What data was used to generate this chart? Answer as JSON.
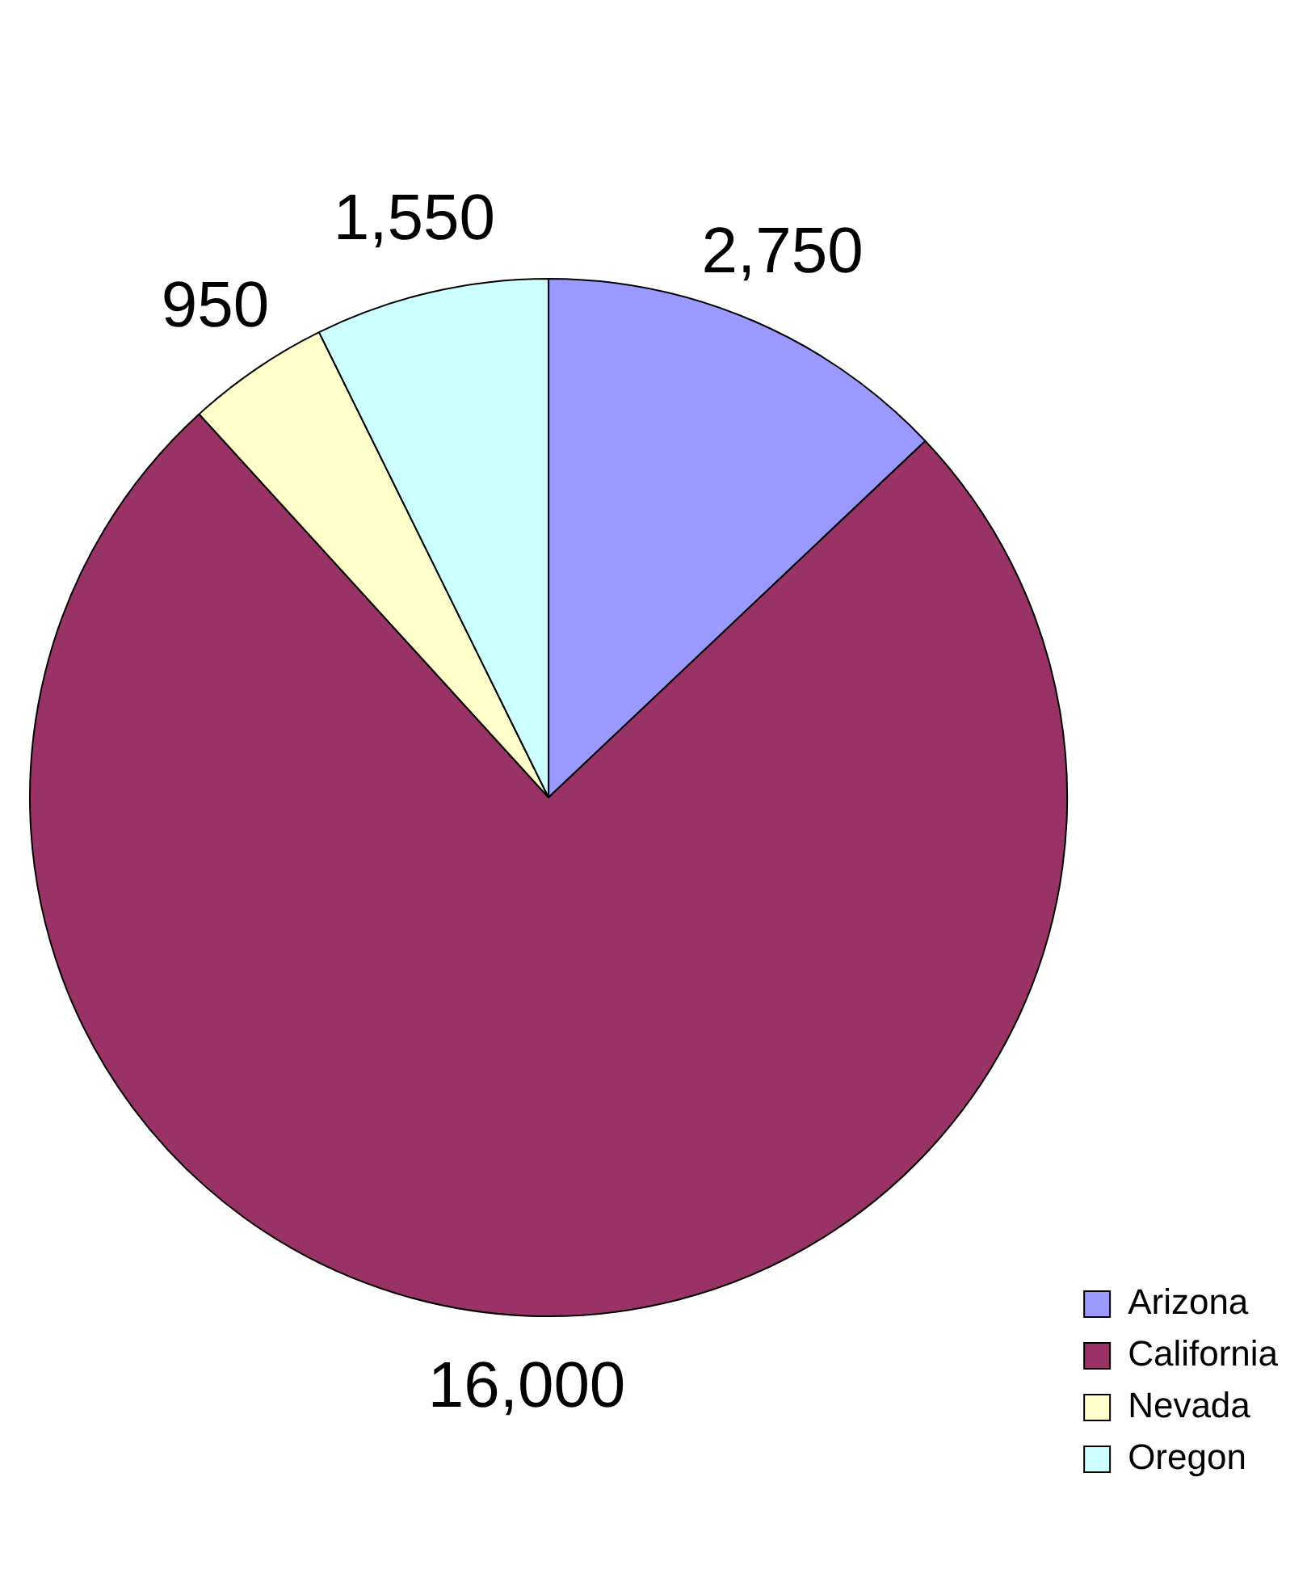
{
  "chart_data": {
    "type": "pie",
    "categories": [
      "Arizona",
      "California",
      "Nevada",
      "Oregon"
    ],
    "values": [
      2750,
      16000,
      950,
      1550
    ],
    "colors": [
      "#9999ff",
      "#993366",
      "#ffffcc",
      "#ccffff"
    ],
    "value_labels": [
      "2,750",
      "16,000",
      "950",
      "1,550"
    ],
    "legend": "bottom right"
  }
}
